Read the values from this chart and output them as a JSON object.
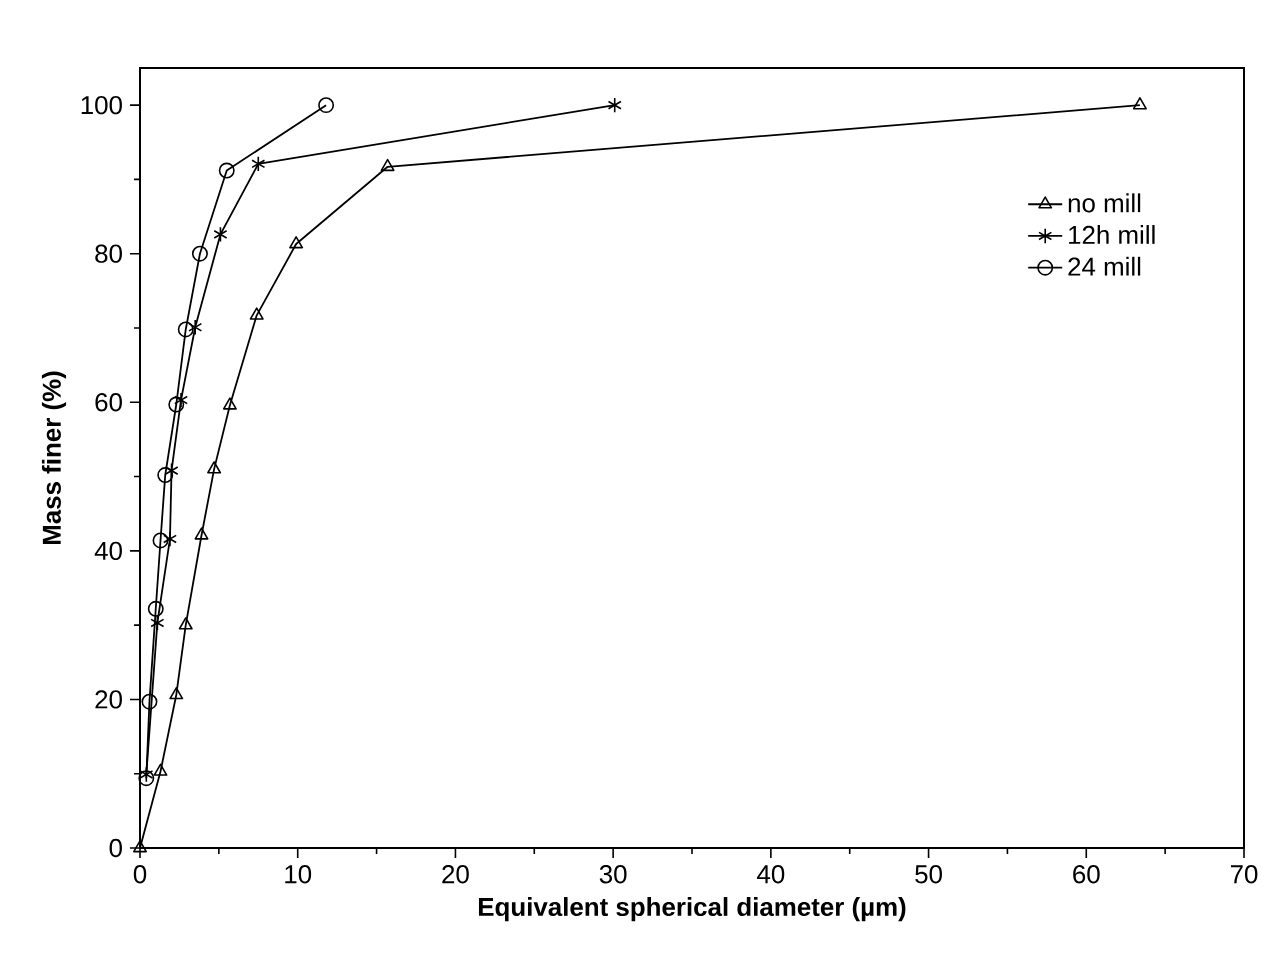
{
  "chart_data": {
    "type": "line",
    "xlabel": "Equivalent spherical diameter (µm)",
    "ylabel": "Mass finer (%)",
    "xlim": [
      0,
      70
    ],
    "ylim": [
      0,
      105
    ],
    "xticks": [
      0,
      10,
      20,
      30,
      40,
      50,
      60,
      70
    ],
    "yticks": [
      0,
      20,
      40,
      60,
      80,
      100
    ],
    "grid": false,
    "legend": "top right",
    "line_style": "solid",
    "series": [
      {
        "name": "no mill",
        "color": "#000000",
        "marker": "triangle",
        "x": [
          0,
          1.3,
          2.3,
          2.9,
          3.9,
          4.7,
          5.7,
          7.4,
          9.9,
          15.7,
          63.4
        ],
        "values": [
          0,
          10.3,
          20.6,
          30,
          42.1,
          51,
          59.6,
          71.7,
          81.3,
          91.7,
          100
        ]
      },
      {
        "name": "12h mill",
        "color": "#000000",
        "marker": "cross",
        "x": [
          0.4,
          1.1,
          1.9,
          2.0,
          2.6,
          3.5,
          5.1,
          7.5,
          30.1
        ],
        "values": [
          9.9,
          30.3,
          41.6,
          50.8,
          60.3,
          70.1,
          82.6,
          92.1,
          100
        ]
      },
      {
        "name": "24 mill",
        "color": "#000000",
        "marker": "circle",
        "x": [
          0.4,
          0.6,
          1.0,
          1.3,
          1.6,
          2.3,
          2.9,
          3.8,
          5.5,
          11.8
        ],
        "values": [
          9.4,
          19.7,
          32.2,
          41.4,
          50.2,
          59.7,
          69.8,
          80,
          91.2,
          100
        ]
      }
    ]
  }
}
